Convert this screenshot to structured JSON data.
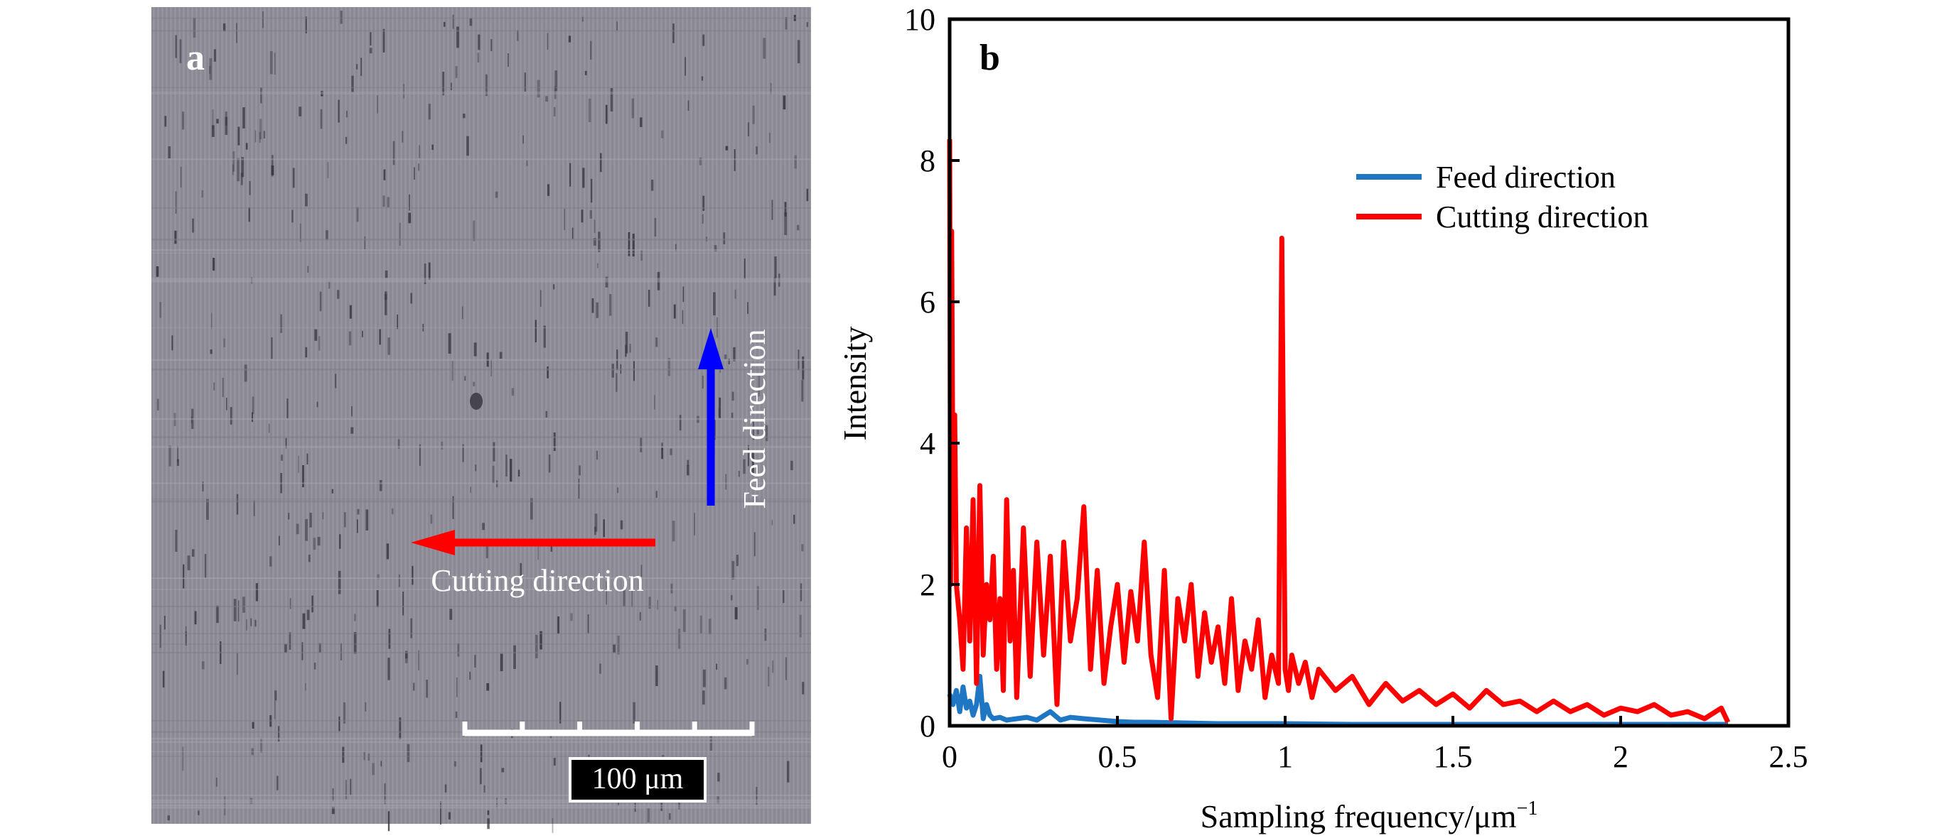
{
  "panel_a": {
    "label": "a",
    "scale_bar_label": "100 μm",
    "scale_bar_ticks": 6,
    "feed_arrow_label": "Feed direction",
    "cutting_arrow_label": "Cutting direction",
    "colors": {
      "micrograph": "#8f8d98",
      "feed_arrow": "#0000ff",
      "cutting_arrow": "#ff0000",
      "text": "#ffffff"
    }
  },
  "chart_data": {
    "type": "line",
    "panel_label": "b",
    "title": "",
    "xlabel": "Sampling frequency/μm",
    "xlabel_superscript": "−1",
    "ylabel": "Intensity",
    "xlim": [
      0,
      2.5
    ],
    "ylim": [
      0,
      10
    ],
    "xticks": [
      0,
      0.5,
      1,
      1.5,
      2,
      2.5
    ],
    "xtick_labels": [
      "0",
      "0.5",
      "1",
      "1.5",
      "2",
      "2.5"
    ],
    "yticks": [
      0,
      2,
      4,
      6,
      8,
      10
    ],
    "ytick_labels": [
      "0",
      "2",
      "4",
      "6",
      "8",
      "10"
    ],
    "grid": false,
    "legend_position": "top-right",
    "series": [
      {
        "name": "Feed direction",
        "color": "#1f77c4",
        "x": [
          0,
          0.005,
          0.01,
          0.02,
          0.03,
          0.04,
          0.05,
          0.06,
          0.07,
          0.08,
          0.09,
          0.1,
          0.11,
          0.12,
          0.13,
          0.15,
          0.17,
          0.2,
          0.23,
          0.26,
          0.3,
          0.33,
          0.36,
          0.4,
          0.45,
          0.5,
          0.55,
          0.6,
          0.7,
          0.8,
          1.0,
          1.2,
          1.5,
          1.8,
          2.0,
          2.2,
          2.32
        ],
        "y": [
          0.45,
          0.35,
          0.3,
          0.5,
          0.2,
          0.55,
          0.25,
          0.35,
          0.15,
          0.3,
          0.7,
          0.1,
          0.3,
          0.15,
          0.1,
          0.12,
          0.08,
          0.1,
          0.12,
          0.08,
          0.2,
          0.08,
          0.12,
          0.1,
          0.08,
          0.06,
          0.05,
          0.05,
          0.04,
          0.03,
          0.03,
          0.02,
          0.02,
          0.02,
          0.02,
          0.02,
          0.02
        ]
      },
      {
        "name": "Cutting direction",
        "color": "#ff0000",
        "x": [
          0,
          0.003,
          0.006,
          0.01,
          0.015,
          0.02,
          0.03,
          0.04,
          0.05,
          0.06,
          0.07,
          0.08,
          0.09,
          0.1,
          0.11,
          0.12,
          0.13,
          0.14,
          0.15,
          0.16,
          0.17,
          0.18,
          0.19,
          0.2,
          0.22,
          0.24,
          0.26,
          0.28,
          0.3,
          0.32,
          0.34,
          0.36,
          0.38,
          0.4,
          0.42,
          0.44,
          0.46,
          0.48,
          0.5,
          0.52,
          0.54,
          0.56,
          0.58,
          0.6,
          0.62,
          0.64,
          0.66,
          0.68,
          0.7,
          0.72,
          0.74,
          0.76,
          0.78,
          0.8,
          0.82,
          0.84,
          0.86,
          0.88,
          0.9,
          0.92,
          0.94,
          0.96,
          0.98,
          0.99,
          1.0,
          1.01,
          1.02,
          1.04,
          1.06,
          1.08,
          1.1,
          1.15,
          1.2,
          1.25,
          1.3,
          1.35,
          1.4,
          1.45,
          1.5,
          1.55,
          1.6,
          1.65,
          1.7,
          1.75,
          1.8,
          1.85,
          1.9,
          1.95,
          2.0,
          2.05,
          2.1,
          2.15,
          2.2,
          2.25,
          2.3,
          2.32
        ],
        "y": [
          8.3,
          2.0,
          7.0,
          3.0,
          4.4,
          2.0,
          1.5,
          0.8,
          2.8,
          1.2,
          3.2,
          0.6,
          3.4,
          1.0,
          2.0,
          1.5,
          2.4,
          0.8,
          1.8,
          0.5,
          3.2,
          1.2,
          2.2,
          0.4,
          2.8,
          0.7,
          2.6,
          1.0,
          2.4,
          0.3,
          2.6,
          1.2,
          1.8,
          3.1,
          0.8,
          2.2,
          0.6,
          1.4,
          2.0,
          0.9,
          1.9,
          1.2,
          2.6,
          1.0,
          0.4,
          2.2,
          0.1,
          1.8,
          1.2,
          2.0,
          0.7,
          1.6,
          0.9,
          1.4,
          0.6,
          1.8,
          0.5,
          1.2,
          0.8,
          1.5,
          0.4,
          1.0,
          0.6,
          6.9,
          0.8,
          0.5,
          1.0,
          0.6,
          0.9,
          0.4,
          0.8,
          0.5,
          0.7,
          0.3,
          0.6,
          0.35,
          0.5,
          0.3,
          0.45,
          0.25,
          0.5,
          0.3,
          0.35,
          0.2,
          0.35,
          0.2,
          0.3,
          0.15,
          0.25,
          0.2,
          0.3,
          0.15,
          0.2,
          0.1,
          0.25,
          0.05
        ]
      }
    ]
  }
}
